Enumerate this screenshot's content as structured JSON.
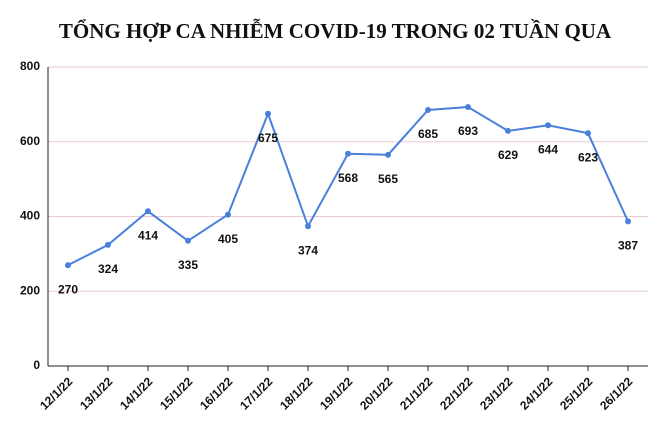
{
  "chart_data": {
    "type": "line",
    "title": "TỔNG HỢP CA NHIỄM COVID-19 TRONG 02 TUẦN QUA",
    "categories": [
      "12/1/22",
      "13/1/22",
      "14/1/22",
      "15/1/22",
      "16/1/22",
      "17/1/22",
      "18/1/22",
      "19/1/22",
      "20/1/22",
      "21/1/22",
      "22/1/22",
      "23/1/22",
      "24/1/22",
      "25/1/22",
      "26/1/22"
    ],
    "values": [
      270,
      324,
      414,
      335,
      405,
      675,
      374,
      568,
      565,
      685,
      693,
      629,
      644,
      623,
      387
    ],
    "color": "#4a80dc",
    "ylim": [
      0,
      800
    ],
    "yticks": [
      0,
      200,
      400,
      600,
      800
    ],
    "grid": true
  }
}
